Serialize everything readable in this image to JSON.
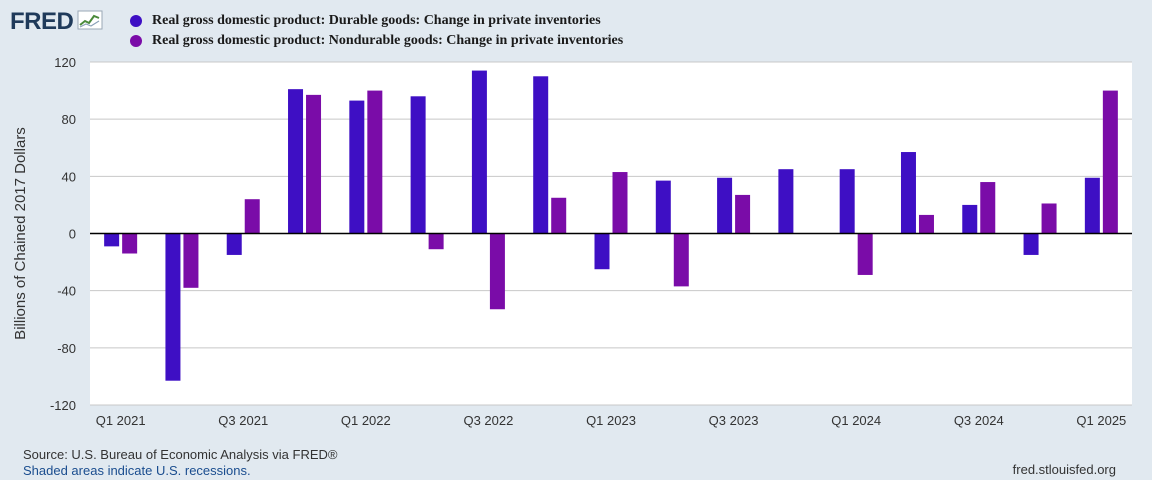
{
  "header": {
    "logo_text": "FRED",
    "logo_icon": "fred-chart-icon"
  },
  "colors": {
    "durable": "#3e0fc4",
    "nondurable": "#7a0ca8",
    "background": "#e1e9f0",
    "plot_bg": "#ffffff",
    "grid": "#c8c8c8"
  },
  "footer": {
    "source": "Source: U.S. Bureau of Economic Analysis via FRED®",
    "shaded": "Shaded areas indicate U.S. recessions.",
    "site": "fred.stlouisfed.org"
  },
  "chart_data": {
    "type": "bar",
    "title": "",
    "xlabel": "",
    "ylabel": "Billions of Chained 2017 Dollars",
    "ylim": [
      -120,
      120
    ],
    "yticks": [
      120,
      80,
      40,
      0,
      -40,
      -80,
      -120
    ],
    "categories": [
      "Q1 2021",
      "Q2 2021",
      "Q3 2021",
      "Q4 2021",
      "Q1 2022",
      "Q2 2022",
      "Q3 2022",
      "Q4 2022",
      "Q1 2023",
      "Q2 2023",
      "Q3 2023",
      "Q4 2023",
      "Q1 2024",
      "Q2 2024",
      "Q3 2024",
      "Q4 2024",
      "Q1 2025"
    ],
    "tick_labels": [
      "Q1 2021",
      "Q3 2021",
      "Q1 2022",
      "Q3 2022",
      "Q1 2023",
      "Q3 2023",
      "Q1 2024",
      "Q3 2024",
      "Q1 2025"
    ],
    "grid": true,
    "legend_position": "top",
    "series": [
      {
        "name": "Real gross domestic product: Durable goods: Change in private inventories",
        "color": "#3e0fc4",
        "values": [
          -9,
          -103,
          -15,
          101,
          93,
          96,
          114,
          110,
          -25,
          37,
          39,
          45,
          45,
          57,
          20,
          -15,
          39
        ]
      },
      {
        "name": "Real gross domestic product: Nondurable goods: Change in private inventories",
        "color": "#7a0ca8",
        "values": [
          -14,
          -38,
          24,
          97,
          100,
          -11,
          -53,
          25,
          43,
          -37,
          27,
          null,
          -29,
          13,
          36,
          21,
          100
        ]
      }
    ]
  }
}
